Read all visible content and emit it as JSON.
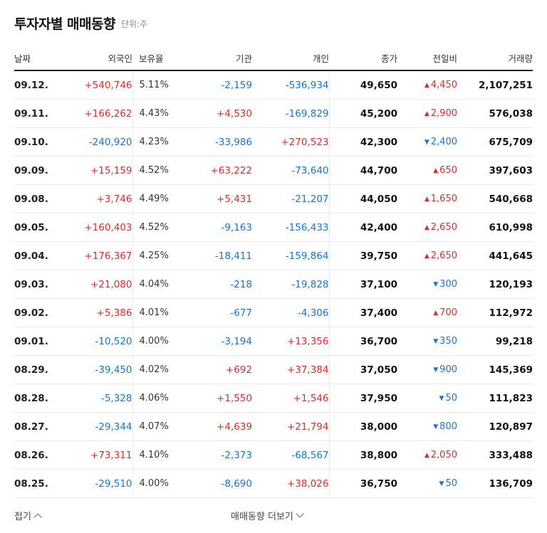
{
  "header": {
    "title": "투자자별 매매동향",
    "unit": "단위:주"
  },
  "columns": [
    "날짜",
    "외국인",
    "보유율",
    "기관",
    "개인",
    "종가",
    "전일비",
    "거래량"
  ],
  "rows": [
    {
      "date": "09.12.",
      "foreign": "+540,746",
      "fdir": "up",
      "ratio": "5.11%",
      "inst": "-2,159",
      "idir": "dn",
      "indiv": "-536,934",
      "pdir": "dn",
      "close": "49,650",
      "change": "4,450",
      "cdir": "up",
      "volume": "2,107,251"
    },
    {
      "date": "09.11.",
      "foreign": "+166,262",
      "fdir": "up",
      "ratio": "4.43%",
      "inst": "+4,530",
      "idir": "up",
      "indiv": "-169,829",
      "pdir": "dn",
      "close": "45,200",
      "change": "2,900",
      "cdir": "up",
      "volume": "576,038"
    },
    {
      "date": "09.10.",
      "foreign": "-240,920",
      "fdir": "dn",
      "ratio": "4.23%",
      "inst": "-33,986",
      "idir": "dn",
      "indiv": "+270,523",
      "pdir": "up",
      "close": "42,300",
      "change": "2,400",
      "cdir": "dn",
      "volume": "675,709"
    },
    {
      "date": "09.09.",
      "foreign": "+15,159",
      "fdir": "up",
      "ratio": "4.52%",
      "inst": "+63,222",
      "idir": "up",
      "indiv": "-73,640",
      "pdir": "dn",
      "close": "44,700",
      "change": "650",
      "cdir": "up",
      "volume": "397,603"
    },
    {
      "date": "09.08.",
      "foreign": "+3,746",
      "fdir": "up",
      "ratio": "4.49%",
      "inst": "+5,431",
      "idir": "up",
      "indiv": "-21,207",
      "pdir": "dn",
      "close": "44,050",
      "change": "1,650",
      "cdir": "up",
      "volume": "540,668"
    },
    {
      "date": "09.05.",
      "foreign": "+160,403",
      "fdir": "up",
      "ratio": "4.52%",
      "inst": "-9,163",
      "idir": "dn",
      "indiv": "-156,433",
      "pdir": "dn",
      "close": "42,400",
      "change": "2,650",
      "cdir": "up",
      "volume": "610,998"
    },
    {
      "date": "09.04.",
      "foreign": "+176,367",
      "fdir": "up",
      "ratio": "4.25%",
      "inst": "-18,411",
      "idir": "dn",
      "indiv": "-159,864",
      "pdir": "dn",
      "close": "39,750",
      "change": "2,650",
      "cdir": "up",
      "volume": "441,645"
    },
    {
      "date": "09.03.",
      "foreign": "+21,080",
      "fdir": "up",
      "ratio": "4.04%",
      "inst": "-218",
      "idir": "dn",
      "indiv": "-19,828",
      "pdir": "dn",
      "close": "37,100",
      "change": "300",
      "cdir": "dn",
      "volume": "120,193"
    },
    {
      "date": "09.02.",
      "foreign": "+5,386",
      "fdir": "up",
      "ratio": "4.01%",
      "inst": "-677",
      "idir": "dn",
      "indiv": "-4,306",
      "pdir": "dn",
      "close": "37,400",
      "change": "700",
      "cdir": "up",
      "volume": "112,972"
    },
    {
      "date": "09.01.",
      "foreign": "-10,520",
      "fdir": "dn",
      "ratio": "4.00%",
      "inst": "-3,194",
      "idir": "dn",
      "indiv": "+13,356",
      "pdir": "up",
      "close": "36,700",
      "change": "350",
      "cdir": "dn",
      "volume": "99,218"
    },
    {
      "date": "08.29.",
      "foreign": "-39,450",
      "fdir": "dn",
      "ratio": "4.02%",
      "inst": "+692",
      "idir": "up",
      "indiv": "+37,384",
      "pdir": "up",
      "close": "37,050",
      "change": "900",
      "cdir": "dn",
      "volume": "145,369"
    },
    {
      "date": "08.28.",
      "foreign": "-5,328",
      "fdir": "dn",
      "ratio": "4.06%",
      "inst": "+1,550",
      "idir": "up",
      "indiv": "+1,546",
      "pdir": "up",
      "close": "37,950",
      "change": "50",
      "cdir": "dn",
      "volume": "111,823"
    },
    {
      "date": "08.27.",
      "foreign": "-29,344",
      "fdir": "dn",
      "ratio": "4.07%",
      "inst": "+4,639",
      "idir": "up",
      "indiv": "+21,794",
      "pdir": "up",
      "close": "38,000",
      "change": "800",
      "cdir": "dn",
      "volume": "120,897"
    },
    {
      "date": "08.26.",
      "foreign": "+73,311",
      "fdir": "up",
      "ratio": "4.10%",
      "inst": "-2,373",
      "idir": "dn",
      "indiv": "-68,567",
      "pdir": "dn",
      "close": "38,800",
      "change": "2,050",
      "cdir": "up",
      "volume": "333,488"
    },
    {
      "date": "08.25.",
      "foreign": "-29,510",
      "fdir": "dn",
      "ratio": "4.00%",
      "inst": "-8,690",
      "idir": "dn",
      "indiv": "+38,026",
      "pdir": "up",
      "close": "36,750",
      "change": "50",
      "cdir": "dn",
      "volume": "136,709"
    }
  ],
  "footer": {
    "collapse_label": "접기",
    "more_label": "매매동향 더보기"
  },
  "icons": {
    "up_arrow": "triangle-up-icon",
    "down_arrow": "triangle-down-icon"
  },
  "colors": {
    "up": "#e22b2b",
    "down": "#1a73d9"
  }
}
